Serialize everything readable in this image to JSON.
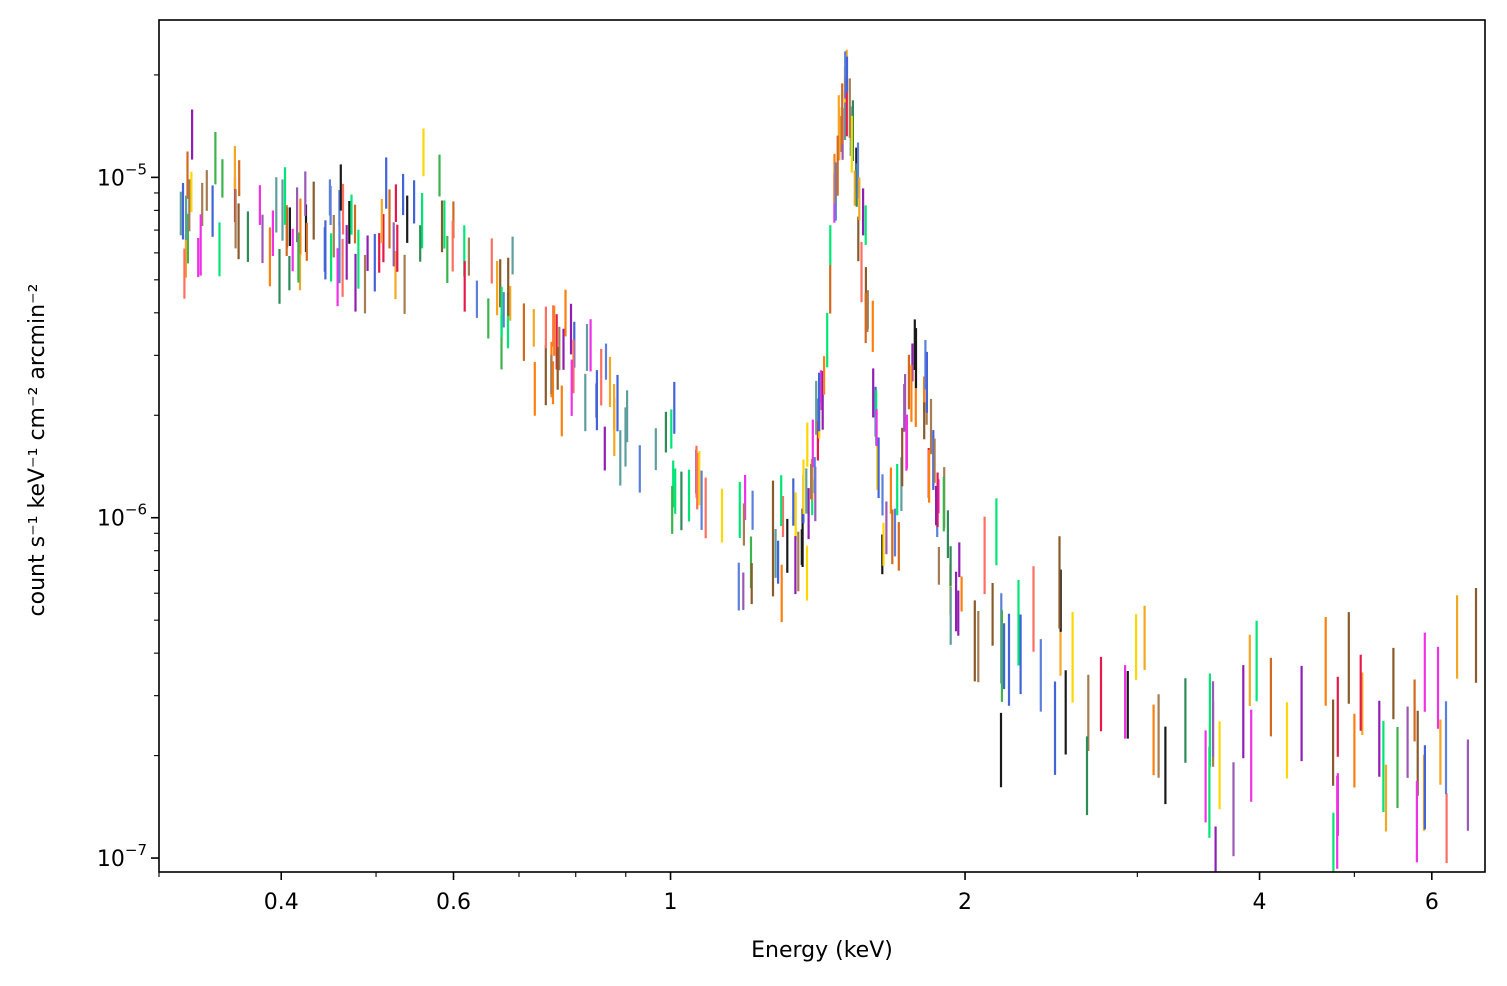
{
  "chart_data": {
    "type": "scatter",
    "xlabel": "Energy (keV)",
    "ylabel": "count s⁻¹ keV⁻¹ cm⁻² arcmin⁻²",
    "xscale": "log",
    "yscale": "log",
    "xlim": [
      0.3,
      6.8
    ],
    "ylim": [
      9.1e-08,
      2.9e-05
    ],
    "x_ticks": [
      {
        "value": 0.4,
        "label": "0.4"
      },
      {
        "value": 0.6,
        "label": "0.6"
      },
      {
        "value": 1,
        "label": "1"
      },
      {
        "value": 2,
        "label": "2"
      },
      {
        "value": 4,
        "label": "4"
      },
      {
        "value": 6,
        "label": "6"
      }
    ],
    "y_ticks": [
      {
        "value": 1e-07,
        "base": "10",
        "exp": "−7"
      },
      {
        "value": 1e-06,
        "base": "10",
        "exp": "−6"
      },
      {
        "value": 1e-05,
        "base": "10",
        "exp": "−5"
      }
    ],
    "grid": false,
    "legend": "none",
    "marker": "vertical error bars (no caps)",
    "series_colors": [
      "#1a1a1a",
      "#ff7f0e",
      "#f5a623",
      "#e6194b",
      "#f032e6",
      "#911eb4",
      "#9b59b6",
      "#4363d8",
      "#5b7fdb",
      "#3cb44b",
      "#2e8b57",
      "#00e676",
      "#ffd700",
      "#ff6f61",
      "#8b5a2b",
      "#5f9ea0",
      "#d2691e",
      "#a67c52"
    ],
    "spectrum_profile": [
      [
        0.32,
        8.4e-06
      ],
      [
        0.36,
        7.6e-06
      ],
      [
        0.42,
        7e-06
      ],
      [
        0.47,
        6.4e-06
      ],
      [
        0.52,
        6.4e-06
      ],
      [
        0.57,
        7.3e-06
      ],
      [
        0.62,
        5.6e-06
      ],
      [
        0.68,
        4.1e-06
      ],
      [
        0.75,
        3e-06
      ],
      [
        0.82,
        2.5e-06
      ],
      [
        0.9,
        1.9e-06
      ],
      [
        1.0,
        1.4e-06
      ],
      [
        1.1,
        1e-06
      ],
      [
        1.2,
        8.5e-07
      ],
      [
        1.3,
        8e-07
      ],
      [
        1.37,
        9.5e-07
      ],
      [
        1.42,
        1.8e-06
      ],
      [
        1.46,
        6e-06
      ],
      [
        1.49,
        1.5e-05
      ],
      [
        1.52,
        1.8e-05
      ],
      [
        1.55,
        1e-05
      ],
      [
        1.6,
        3e-06
      ],
      [
        1.65,
        1.1e-06
      ],
      [
        1.7,
        9.5e-07
      ],
      [
        1.74,
        1.8e-06
      ],
      [
        1.78,
        2.8e-06
      ],
      [
        1.83,
        2e-06
      ],
      [
        1.88,
        9e-07
      ],
      [
        2.0,
        6.2e-07
      ],
      [
        2.3,
        4e-07
      ],
      [
        2.8,
        2.9e-07
      ],
      [
        3.5,
        2.5e-07
      ],
      [
        4.5,
        2.2e-07
      ],
      [
        5.5,
        2e-07
      ],
      [
        6.7,
        1.9e-07
      ]
    ],
    "approx_points": 430
  }
}
